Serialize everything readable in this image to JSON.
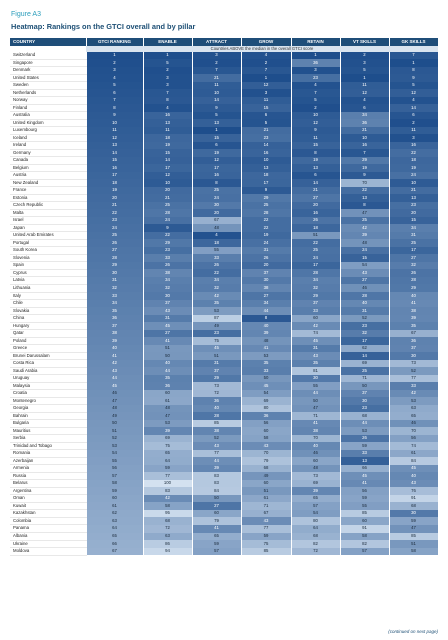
{
  "figure_label": "Figure A3",
  "title": "Heatmap: Rankings on the GTCI overall and by pillar",
  "columns": [
    "COUNTRY",
    "GTCI RANKING",
    "ENABLE",
    "ATTRACT",
    "GROW",
    "RETAIN",
    "VT SKILLS",
    "GK SKILLS"
  ],
  "subheader_note": "Countries ABOVE the median in the overall GTCI score",
  "rows": [
    [
      "Switzerland",
      "1",
      "1",
      "3",
      "4",
      "1",
      "2",
      "7"
    ],
    [
      "Singapore",
      "2",
      "5",
      "2",
      "2",
      "36",
      "3",
      "1"
    ],
    [
      "Denmark",
      "3",
      "2",
      "7",
      "7",
      "3",
      "5",
      "8"
    ],
    [
      "United States",
      "4",
      "3",
      "21",
      "1",
      "23",
      "1",
      "9"
    ],
    [
      "Sweden",
      "5",
      "3",
      "11",
      "12",
      "4",
      "11",
      "5"
    ],
    [
      "Netherlands",
      "6",
      "7",
      "10",
      "3",
      "7",
      "12",
      "12"
    ],
    [
      "Norway",
      "7",
      "8",
      "14",
      "11",
      "5",
      "4",
      "4"
    ],
    [
      "Finland",
      "8",
      "4",
      "9",
      "15",
      "2",
      "6",
      "14"
    ],
    [
      "Australia",
      "9",
      "16",
      "5",
      "6",
      "10",
      "34",
      "6"
    ],
    [
      "United Kingdom",
      "10",
      "13",
      "13",
      "5",
      "12",
      "36",
      "2"
    ],
    [
      "Luxembourg",
      "11",
      "11",
      "1",
      "21",
      "9",
      "21",
      "11"
    ],
    [
      "Iceland",
      "12",
      "18",
      "15",
      "23",
      "11",
      "10",
      "3"
    ],
    [
      "Ireland",
      "13",
      "19",
      "6",
      "14",
      "15",
      "16",
      "16"
    ],
    [
      "Germany",
      "14",
      "15",
      "19",
      "16",
      "8",
      "7",
      "22"
    ],
    [
      "Canada",
      "15",
      "14",
      "12",
      "10",
      "19",
      "29",
      "18"
    ],
    [
      "Belgium",
      "16",
      "17",
      "17",
      "13",
      "13",
      "19",
      "19"
    ],
    [
      "Austria",
      "17",
      "12",
      "16",
      "18",
      "6",
      "9",
      "24"
    ],
    [
      "New Zealand",
      "18",
      "10",
      "8",
      "17",
      "14",
      "70",
      "10"
    ],
    [
      "France",
      "19",
      "20",
      "25",
      "9",
      "21",
      "22",
      "21"
    ],
    [
      "Estonia",
      "20",
      "21",
      "24",
      "29",
      "27",
      "13",
      "13"
    ],
    [
      "Czech Republic",
      "21",
      "25",
      "30",
      "25",
      "20",
      "8",
      "23"
    ],
    [
      "Malta",
      "22",
      "28",
      "20",
      "28",
      "16",
      "47",
      "20"
    ],
    [
      "Israel",
      "23",
      "24",
      "67",
      "22",
      "26",
      "25",
      "15"
    ],
    [
      "Japan",
      "24",
      "9",
      "48",
      "22",
      "18",
      "42",
      "34"
    ],
    [
      "United Arab Emirates",
      "25",
      "22",
      "4",
      "19",
      "51",
      "39",
      "31"
    ],
    [
      "Portugal",
      "26",
      "29",
      "18",
      "24",
      "22",
      "48",
      "25"
    ],
    [
      "South Korea",
      "27",
      "23",
      "55",
      "31",
      "25",
      "24",
      "17"
    ],
    [
      "Slovenia",
      "28",
      "33",
      "33",
      "26",
      "24",
      "15",
      "27"
    ],
    [
      "Spain",
      "29",
      "26",
      "26",
      "20",
      "17",
      "54",
      "32"
    ],
    [
      "Cyprus",
      "30",
      "38",
      "22",
      "37",
      "28",
      "43",
      "26"
    ],
    [
      "Latvia",
      "31",
      "34",
      "34",
      "30",
      "34",
      "27",
      "28"
    ],
    [
      "Lithuania",
      "32",
      "32",
      "32",
      "38",
      "32",
      "46",
      "29"
    ],
    [
      "Italy",
      "33",
      "30",
      "42",
      "27",
      "29",
      "28",
      "40"
    ],
    [
      "Chile",
      "34",
      "37",
      "35",
      "34",
      "37",
      "40",
      "41"
    ],
    [
      "Slovakia",
      "35",
      "43",
      "53",
      "44",
      "33",
      "31",
      "38"
    ],
    [
      "China",
      "36",
      "31",
      "87",
      "8",
      "60",
      "52",
      "39"
    ],
    [
      "Hungary",
      "37",
      "45",
      "49",
      "40",
      "42",
      "23",
      "35"
    ],
    [
      "Qatar",
      "38",
      "27",
      "23",
      "39",
      "74",
      "32",
      "67"
    ],
    [
      "Poland",
      "39",
      "41",
      "75",
      "48",
      "45",
      "17",
      "36"
    ],
    [
      "Greece",
      "40",
      "51",
      "45",
      "41",
      "31",
      "62",
      "37"
    ],
    [
      "Brunei Darussalam",
      "41",
      "50",
      "51",
      "53",
      "43",
      "14",
      "30"
    ],
    [
      "Costa Rica",
      "42",
      "40",
      "31",
      "35",
      "35",
      "69",
      "73"
    ],
    [
      "Saudi Arabia",
      "43",
      "44",
      "37",
      "33",
      "81",
      "25",
      "52"
    ],
    [
      "Uruguay",
      "44",
      "35",
      "29",
      "50",
      "30",
      "71",
      "77"
    ],
    [
      "Malaysia",
      "45",
      "36",
      "73",
      "45",
      "55",
      "50",
      "33"
    ],
    [
      "Croatia",
      "46",
      "60",
      "72",
      "54",
      "44",
      "37",
      "42"
    ],
    [
      "Montenegro",
      "47",
      "61",
      "36",
      "69",
      "50",
      "30",
      "53"
    ],
    [
      "Georgia",
      "48",
      "48",
      "40",
      "80",
      "47",
      "23",
      "63"
    ],
    [
      "Bahrain",
      "49",
      "47",
      "28",
      "36",
      "71",
      "68",
      "65"
    ],
    [
      "Bulgaria",
      "50",
      "53",
      "85",
      "56",
      "41",
      "44",
      "46"
    ],
    [
      "Mauritius",
      "51",
      "39",
      "38",
      "60",
      "38",
      "53",
      "70"
    ],
    [
      "Serbia",
      "52",
      "69",
      "52",
      "58",
      "70",
      "26",
      "56"
    ],
    [
      "Trinidad and Tobago",
      "53",
      "75",
      "43",
      "43",
      "40",
      "59",
      "74"
    ],
    [
      "Romania",
      "54",
      "65",
      "77",
      "70",
      "46",
      "33",
      "61"
    ],
    [
      "Azerbaijan",
      "55",
      "64",
      "44",
      "79",
      "60",
      "13",
      "84"
    ],
    [
      "Armenia",
      "56",
      "59",
      "39",
      "68",
      "48",
      "66",
      "45"
    ],
    [
      "Russia",
      "57",
      "77",
      "83",
      "49",
      "73",
      "45",
      "40"
    ],
    [
      "Belarus",
      "58",
      "100",
      "83",
      "60",
      "69",
      "41",
      "43"
    ],
    [
      "Argentina",
      "59",
      "83",
      "84",
      "51",
      "39",
      "56",
      "76"
    ],
    [
      "Oman",
      "60",
      "42",
      "50",
      "61",
      "65",
      "59",
      "91"
    ],
    [
      "Kuwait",
      "61",
      "58",
      "27",
      "71",
      "57",
      "55",
      "68"
    ],
    [
      "Kazakhstan",
      "62",
      "95",
      "60",
      "67",
      "54",
      "85",
      "30"
    ],
    [
      "Colombia",
      "63",
      "68",
      "79",
      "43",
      "80",
      "60",
      "59"
    ],
    [
      "Panama",
      "64",
      "72",
      "41",
      "77",
      "64",
      "91",
      "47"
    ],
    [
      "Albania",
      "65",
      "63",
      "65",
      "59",
      "68",
      "58",
      "85"
    ],
    [
      "Ukraine",
      "66",
      "86",
      "59",
      "75",
      "82",
      "82",
      "51"
    ],
    [
      "Moldova",
      "67",
      "94",
      "57",
      "85",
      "72",
      "57",
      "58"
    ]
  ],
  "footer_note": "(continued on next page)"
}
